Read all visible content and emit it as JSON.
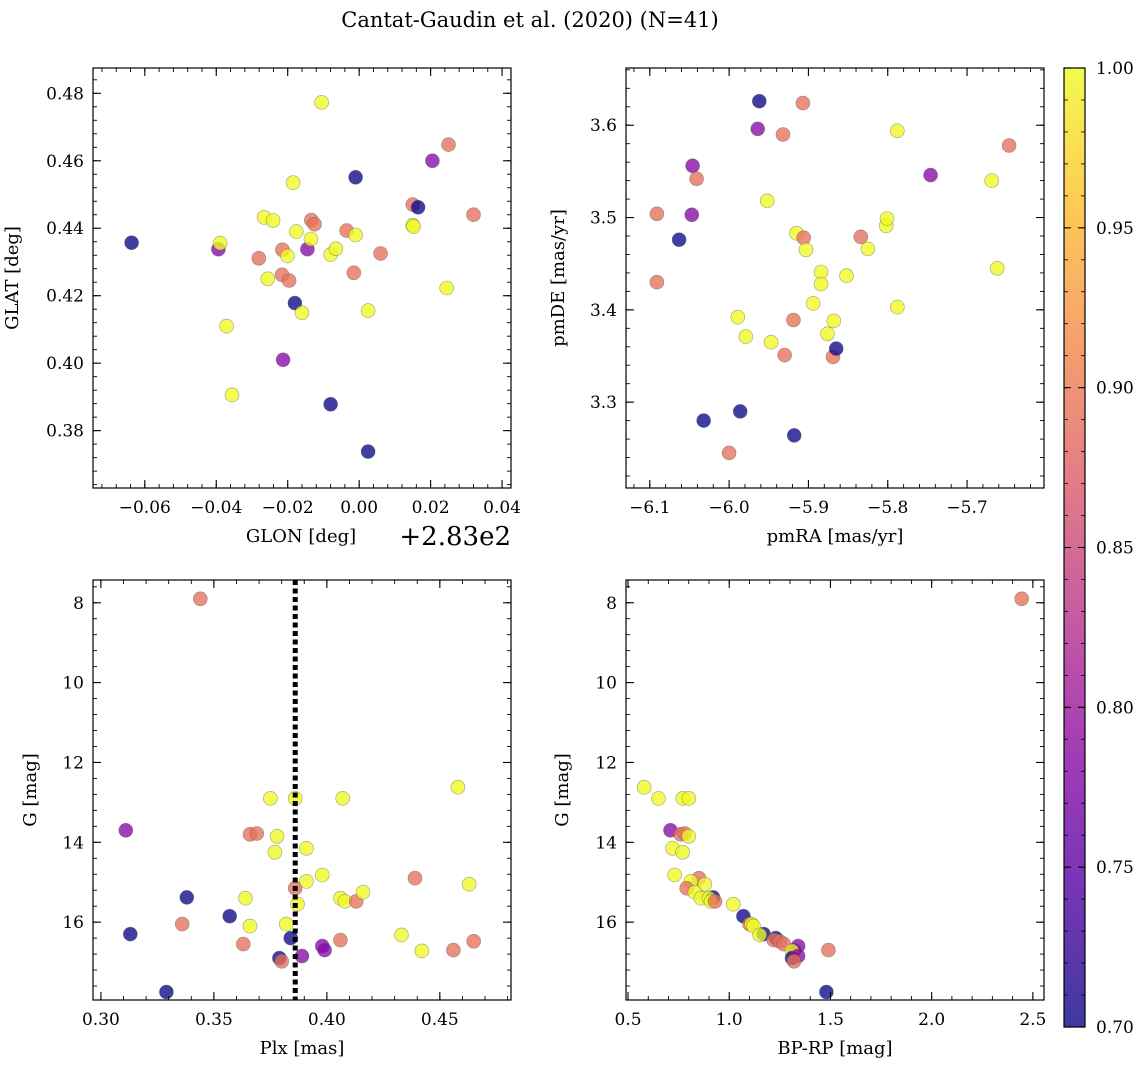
{
  "figure": {
    "title": "Cantat-Gaudin et al. (2020) (N=41)"
  },
  "chart_data": [
    {
      "type": "scatter",
      "name": "glon-glat",
      "xlabel": "GLON [deg]",
      "ylabel": "GLAT [deg]",
      "x_offset_text": "+2.83e2",
      "xlim": [
        -0.0745,
        0.0425
      ],
      "ylim": [
        0.363,
        0.4875
      ],
      "invert_y": false,
      "xticks": [
        -0.06,
        -0.04,
        -0.02,
        0.0,
        0.02,
        0.04
      ],
      "xtick_labels": [
        "−0.06",
        "−0.04",
        "−0.02",
        "0.00",
        "0.02",
        "0.04"
      ],
      "yticks": [
        0.38,
        0.4,
        0.42,
        0.44,
        0.46,
        0.48
      ],
      "ytick_labels": [
        "0.38",
        "0.40",
        "0.42",
        "0.44",
        "0.46",
        "0.48"
      ],
      "points": [
        {
          "x": -0.0637,
          "y": 0.4357,
          "c": 0.7
        },
        {
          "x": -0.0394,
          "y": 0.4338,
          "c": 0.78
        },
        {
          "x": -0.0389,
          "y": 0.4356,
          "c": 1.0
        },
        {
          "x": -0.0371,
          "y": 0.411,
          "c": 1.0
        },
        {
          "x": -0.0356,
          "y": 0.3906,
          "c": 1.0
        },
        {
          "x": -0.0281,
          "y": 0.4311,
          "c": 0.89
        },
        {
          "x": -0.0266,
          "y": 0.4432,
          "c": 1.0
        },
        {
          "x": -0.0256,
          "y": 0.425,
          "c": 1.0
        },
        {
          "x": -0.0241,
          "y": 0.4423,
          "c": 1.0
        },
        {
          "x": -0.0215,
          "y": 0.4336,
          "c": 0.89
        },
        {
          "x": -0.0216,
          "y": 0.4262,
          "c": 0.89
        },
        {
          "x": -0.0213,
          "y": 0.401,
          "c": 0.78
        },
        {
          "x": -0.0201,
          "y": 0.4318,
          "c": 1.0
        },
        {
          "x": -0.0196,
          "y": 0.4245,
          "c": 0.89
        },
        {
          "x": -0.0185,
          "y": 0.4535,
          "c": 1.0
        },
        {
          "x": -0.018,
          "y": 0.4178,
          "c": 0.7
        },
        {
          "x": -0.0176,
          "y": 0.439,
          "c": 1.0
        },
        {
          "x": -0.016,
          "y": 0.4149,
          "c": 1.0
        },
        {
          "x": -0.0145,
          "y": 0.4338,
          "c": 0.78
        },
        {
          "x": -0.0134,
          "y": 0.4424,
          "c": 0.89
        },
        {
          "x": -0.0135,
          "y": 0.4368,
          "c": 1.0
        },
        {
          "x": -0.0125,
          "y": 0.4412,
          "c": 0.89
        },
        {
          "x": -0.0105,
          "y": 0.4773,
          "c": 1.0
        },
        {
          "x": -0.008,
          "y": 0.3878,
          "c": 0.7
        },
        {
          "x": -0.008,
          "y": 0.4322,
          "c": 1.0
        },
        {
          "x": -0.0065,
          "y": 0.4339,
          "c": 1.0
        },
        {
          "x": -0.0035,
          "y": 0.4393,
          "c": 0.89
        },
        {
          "x": -0.0015,
          "y": 0.4268,
          "c": 0.89
        },
        {
          "x": -0.001,
          "y": 0.4551,
          "c": 0.7
        },
        {
          "x": -0.001,
          "y": 0.438,
          "c": 1.0
        },
        {
          "x": 0.0025,
          "y": 0.3738,
          "c": 0.7
        },
        {
          "x": 0.0025,
          "y": 0.4156,
          "c": 1.0
        },
        {
          "x": 0.006,
          "y": 0.4325,
          "c": 0.89
        },
        {
          "x": 0.015,
          "y": 0.447,
          "c": 0.89
        },
        {
          "x": 0.015,
          "y": 0.4409,
          "c": 1.0
        },
        {
          "x": 0.0152,
          "y": 0.4405,
          "c": 1.0
        },
        {
          "x": 0.0165,
          "y": 0.4462,
          "c": 0.7
        },
        {
          "x": 0.0205,
          "y": 0.46,
          "c": 0.78
        },
        {
          "x": 0.0245,
          "y": 0.4223,
          "c": 1.0
        },
        {
          "x": 0.025,
          "y": 0.4648,
          "c": 0.89
        },
        {
          "x": 0.032,
          "y": 0.444,
          "c": 0.89
        }
      ]
    },
    {
      "type": "scatter",
      "name": "pmra-pmde",
      "xlabel": "pmRA [mas/yr]",
      "ylabel": "pmDE [mas/yr]",
      "xlim": [
        -6.13,
        -5.603
      ],
      "ylim": [
        3.207,
        3.662
      ],
      "invert_y": false,
      "xticks": [
        -6.1,
        -6.0,
        -5.9,
        -5.8,
        -5.7
      ],
      "xtick_labels": [
        "−6.1",
        "−6.0",
        "−5.9",
        "−5.8",
        "−5.7"
      ],
      "yticks": [
        3.3,
        3.4,
        3.5,
        3.6
      ],
      "ytick_labels": [
        "3.3",
        "3.4",
        "3.5",
        "3.6"
      ],
      "points": [
        {
          "x": -6.091,
          "y": 3.504,
          "c": 0.89
        },
        {
          "x": -6.091,
          "y": 3.43,
          "c": 0.89
        },
        {
          "x": -6.063,
          "y": 3.476,
          "c": 0.7
        },
        {
          "x": -6.046,
          "y": 3.556,
          "c": 0.78
        },
        {
          "x": -6.041,
          "y": 3.542,
          "c": 0.89
        },
        {
          "x": -6.047,
          "y": 3.503,
          "c": 0.78
        },
        {
          "x": -6.032,
          "y": 3.28,
          "c": 0.7
        },
        {
          "x": -6.0,
          "y": 3.245,
          "c": 0.89
        },
        {
          "x": -5.989,
          "y": 3.392,
          "c": 1.0
        },
        {
          "x": -5.986,
          "y": 3.29,
          "c": 0.7
        },
        {
          "x": -5.979,
          "y": 3.371,
          "c": 1.0
        },
        {
          "x": -5.964,
          "y": 3.596,
          "c": 0.78
        },
        {
          "x": -5.962,
          "y": 3.626,
          "c": 0.7
        },
        {
          "x": -5.952,
          "y": 3.518,
          "c": 1.0
        },
        {
          "x": -5.947,
          "y": 3.365,
          "c": 1.0
        },
        {
          "x": -5.932,
          "y": 3.59,
          "c": 0.89
        },
        {
          "x": -5.93,
          "y": 3.351,
          "c": 0.89
        },
        {
          "x": -5.919,
          "y": 3.389,
          "c": 0.89
        },
        {
          "x": -5.918,
          "y": 3.264,
          "c": 0.7
        },
        {
          "x": -5.915,
          "y": 3.483,
          "c": 1.0
        },
        {
          "x": -5.907,
          "y": 3.624,
          "c": 0.89
        },
        {
          "x": -5.906,
          "y": 3.478,
          "c": 0.89
        },
        {
          "x": -5.903,
          "y": 3.465,
          "c": 1.0
        },
        {
          "x": -5.894,
          "y": 3.407,
          "c": 1.0
        },
        {
          "x": -5.884,
          "y": 3.441,
          "c": 1.0
        },
        {
          "x": -5.884,
          "y": 3.428,
          "c": 1.0
        },
        {
          "x": -5.876,
          "y": 3.374,
          "c": 1.0
        },
        {
          "x": -5.869,
          "y": 3.349,
          "c": 0.89
        },
        {
          "x": -5.868,
          "y": 3.388,
          "c": 1.0
        },
        {
          "x": -5.865,
          "y": 3.358,
          "c": 0.7
        },
        {
          "x": -5.852,
          "y": 3.437,
          "c": 1.0
        },
        {
          "x": -5.834,
          "y": 3.479,
          "c": 0.89
        },
        {
          "x": -5.825,
          "y": 3.466,
          "c": 1.0
        },
        {
          "x": -5.802,
          "y": 3.491,
          "c": 1.0
        },
        {
          "x": -5.801,
          "y": 3.499,
          "c": 1.0
        },
        {
          "x": -5.788,
          "y": 3.594,
          "c": 1.0
        },
        {
          "x": -5.788,
          "y": 3.403,
          "c": 1.0
        },
        {
          "x": -5.746,
          "y": 3.546,
          "c": 0.78
        },
        {
          "x": -5.669,
          "y": 3.54,
          "c": 1.0
        },
        {
          "x": -5.662,
          "y": 3.445,
          "c": 1.0
        },
        {
          "x": -5.647,
          "y": 3.578,
          "c": 0.89
        }
      ]
    },
    {
      "type": "scatter",
      "name": "plx-g",
      "xlabel": "Plx [mas]",
      "ylabel": "G [mag]",
      "xlim": [
        0.2965,
        0.4815
      ],
      "ylim": [
        7.43,
        17.95
      ],
      "invert_y": true,
      "vline_x": 0.386,
      "xticks": [
        0.3,
        0.35,
        0.4,
        0.45
      ],
      "xtick_labels": [
        "0.30",
        "0.35",
        "0.40",
        "0.45"
      ],
      "yticks": [
        8,
        10,
        12,
        14,
        16
      ],
      "ytick_labels": [
        "8",
        "10",
        "12",
        "14",
        "16"
      ],
      "points": [
        {
          "x": 0.344,
          "y": 7.9,
          "c": 0.89
        },
        {
          "x": 0.311,
          "y": 13.7,
          "c": 0.78
        },
        {
          "x": 0.313,
          "y": 16.3,
          "c": 0.7
        },
        {
          "x": 0.329,
          "y": 17.75,
          "c": 0.7
        },
        {
          "x": 0.336,
          "y": 16.05,
          "c": 0.89
        },
        {
          "x": 0.338,
          "y": 15.38,
          "c": 0.7
        },
        {
          "x": 0.357,
          "y": 15.85,
          "c": 0.7
        },
        {
          "x": 0.363,
          "y": 16.55,
          "c": 0.89
        },
        {
          "x": 0.364,
          "y": 15.4,
          "c": 1.0
        },
        {
          "x": 0.366,
          "y": 13.8,
          "c": 0.89
        },
        {
          "x": 0.366,
          "y": 16.1,
          "c": 1.0
        },
        {
          "x": 0.369,
          "y": 13.78,
          "c": 0.89
        },
        {
          "x": 0.375,
          "y": 12.9,
          "c": 1.0
        },
        {
          "x": 0.377,
          "y": 14.25,
          "c": 1.0
        },
        {
          "x": 0.378,
          "y": 13.85,
          "c": 1.0
        },
        {
          "x": 0.379,
          "y": 16.9,
          "c": 0.7
        },
        {
          "x": 0.38,
          "y": 16.98,
          "c": 0.89
        },
        {
          "x": 0.382,
          "y": 16.05,
          "c": 1.0
        },
        {
          "x": 0.384,
          "y": 16.4,
          "c": 0.7
        },
        {
          "x": 0.386,
          "y": 12.9,
          "c": 1.0
        },
        {
          "x": 0.386,
          "y": 15.15,
          "c": 0.89
        },
        {
          "x": 0.387,
          "y": 15.55,
          "c": 1.0
        },
        {
          "x": 0.389,
          "y": 16.85,
          "c": 0.78
        },
        {
          "x": 0.391,
          "y": 14.98,
          "c": 1.0
        },
        {
          "x": 0.391,
          "y": 14.15,
          "c": 1.0
        },
        {
          "x": 0.398,
          "y": 14.82,
          "c": 1.0
        },
        {
          "x": 0.398,
          "y": 16.6,
          "c": 0.78
        },
        {
          "x": 0.399,
          "y": 16.7,
          "c": 0.78
        },
        {
          "x": 0.406,
          "y": 15.4,
          "c": 1.0
        },
        {
          "x": 0.406,
          "y": 16.45,
          "c": 0.89
        },
        {
          "x": 0.407,
          "y": 12.9,
          "c": 1.0
        },
        {
          "x": 0.408,
          "y": 15.48,
          "c": 1.0
        },
        {
          "x": 0.413,
          "y": 15.48,
          "c": 0.89
        },
        {
          "x": 0.416,
          "y": 15.25,
          "c": 1.0
        },
        {
          "x": 0.433,
          "y": 16.32,
          "c": 1.0
        },
        {
          "x": 0.439,
          "y": 14.9,
          "c": 0.89
        },
        {
          "x": 0.442,
          "y": 16.72,
          "c": 1.0
        },
        {
          "x": 0.456,
          "y": 16.7,
          "c": 0.89
        },
        {
          "x": 0.458,
          "y": 12.62,
          "c": 1.0
        },
        {
          "x": 0.463,
          "y": 15.05,
          "c": 1.0
        },
        {
          "x": 0.465,
          "y": 16.48,
          "c": 0.89
        }
      ]
    },
    {
      "type": "scatter",
      "name": "bprp-g",
      "xlabel": "BP-RP [mag]",
      "ylabel": "G [mag]",
      "xlim": [
        0.49,
        2.555
      ],
      "ylim": [
        7.43,
        17.95
      ],
      "invert_y": true,
      "xticks": [
        0.5,
        1.0,
        1.5,
        2.0,
        2.5
      ],
      "xtick_labels": [
        "0.5",
        "1.0",
        "1.5",
        "2.0",
        "2.5"
      ],
      "yticks": [
        8,
        10,
        12,
        14,
        16
      ],
      "ytick_labels": [
        "8",
        "10",
        "12",
        "14",
        "16"
      ],
      "points": [
        {
          "x": 2.445,
          "y": 7.9,
          "c": 0.89
        },
        {
          "x": 0.58,
          "y": 12.62,
          "c": 1.0
        },
        {
          "x": 0.65,
          "y": 12.9,
          "c": 1.0
        },
        {
          "x": 0.77,
          "y": 12.9,
          "c": 1.0
        },
        {
          "x": 0.8,
          "y": 12.9,
          "c": 1.0
        },
        {
          "x": 0.71,
          "y": 13.7,
          "c": 0.78
        },
        {
          "x": 0.76,
          "y": 13.8,
          "c": 0.89
        },
        {
          "x": 0.78,
          "y": 13.78,
          "c": 0.89
        },
        {
          "x": 0.8,
          "y": 13.85,
          "c": 1.0
        },
        {
          "x": 0.72,
          "y": 14.15,
          "c": 1.0
        },
        {
          "x": 0.77,
          "y": 14.25,
          "c": 1.0
        },
        {
          "x": 0.73,
          "y": 14.82,
          "c": 1.0
        },
        {
          "x": 0.85,
          "y": 14.9,
          "c": 0.89
        },
        {
          "x": 0.81,
          "y": 14.98,
          "c": 1.0
        },
        {
          "x": 0.88,
          "y": 15.05,
          "c": 1.0
        },
        {
          "x": 0.79,
          "y": 15.15,
          "c": 0.89
        },
        {
          "x": 0.83,
          "y": 15.25,
          "c": 1.0
        },
        {
          "x": 0.86,
          "y": 15.4,
          "c": 1.0
        },
        {
          "x": 0.92,
          "y": 15.38,
          "c": 0.7
        },
        {
          "x": 0.9,
          "y": 15.4,
          "c": 1.0
        },
        {
          "x": 0.91,
          "y": 15.48,
          "c": 1.0
        },
        {
          "x": 0.93,
          "y": 15.48,
          "c": 0.89
        },
        {
          "x": 1.02,
          "y": 15.55,
          "c": 1.0
        },
        {
          "x": 1.07,
          "y": 15.85,
          "c": 0.7
        },
        {
          "x": 1.1,
          "y": 16.05,
          "c": 0.89
        },
        {
          "x": 1.11,
          "y": 16.05,
          "c": 1.0
        },
        {
          "x": 1.12,
          "y": 16.1,
          "c": 1.0
        },
        {
          "x": 1.17,
          "y": 16.3,
          "c": 0.7
        },
        {
          "x": 1.15,
          "y": 16.32,
          "c": 1.0
        },
        {
          "x": 1.23,
          "y": 16.4,
          "c": 0.7
        },
        {
          "x": 1.22,
          "y": 16.45,
          "c": 0.89
        },
        {
          "x": 1.25,
          "y": 16.48,
          "c": 0.89
        },
        {
          "x": 1.27,
          "y": 16.55,
          "c": 0.89
        },
        {
          "x": 1.34,
          "y": 16.6,
          "c": 0.78
        },
        {
          "x": 1.32,
          "y": 16.7,
          "c": 0.78
        },
        {
          "x": 1.31,
          "y": 16.72,
          "c": 1.0
        },
        {
          "x": 1.49,
          "y": 16.7,
          "c": 0.89
        },
        {
          "x": 1.31,
          "y": 16.9,
          "c": 0.7
        },
        {
          "x": 1.34,
          "y": 16.85,
          "c": 0.78
        },
        {
          "x": 1.32,
          "y": 16.98,
          "c": 0.89
        },
        {
          "x": 1.48,
          "y": 17.75,
          "c": 0.7
        }
      ]
    }
  ],
  "colorbar": {
    "min": 0.7,
    "max": 1.0,
    "ticks": [
      0.7,
      0.75,
      0.8,
      0.85,
      0.9,
      0.95,
      1.0
    ],
    "tick_labels": [
      "0.70",
      "0.75",
      "0.80",
      "0.85",
      "0.90",
      "0.95",
      "1.00"
    ],
    "colormap": "plasma",
    "color_stops": [
      "#0d0887",
      "#5302a3",
      "#8b0aa5",
      "#b83289",
      "#db5c68",
      "#f48849",
      "#febd2a",
      "#f0f921"
    ]
  },
  "style": {
    "marker_alpha": 0.78,
    "vline_color": "#000000",
    "marker_edge_color": "#555555"
  }
}
